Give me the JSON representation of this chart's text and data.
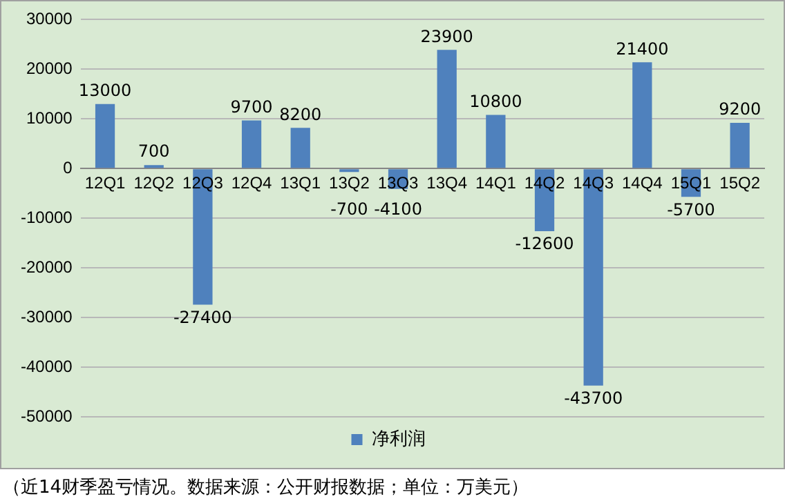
{
  "chart_data": {
    "type": "bar",
    "categories": [
      "12Q1",
      "12Q2",
      "12Q3",
      "12Q4",
      "13Q1",
      "13Q2",
      "13Q3",
      "13Q4",
      "14Q1",
      "14Q2",
      "14Q3",
      "14Q4",
      "15Q1",
      "15Q2"
    ],
    "series": [
      {
        "name": "净利润",
        "color": "#4f81bd",
        "values": [
          13000,
          700,
          -27400,
          9700,
          8200,
          -700,
          -4100,
          23900,
          10800,
          -12600,
          -43700,
          21400,
          -5700,
          9200
        ]
      }
    ],
    "ylim": [
      -50000,
      30000
    ],
    "yticks": [
      -50000,
      -40000,
      -30000,
      -20000,
      -10000,
      0,
      10000,
      20000,
      30000
    ],
    "grid": "y",
    "legend": "bottom",
    "data_labels": true,
    "annotations": [
      "（近14财季盈亏情况。数据来源：公开财报数据；单位：万美元）"
    ]
  }
}
